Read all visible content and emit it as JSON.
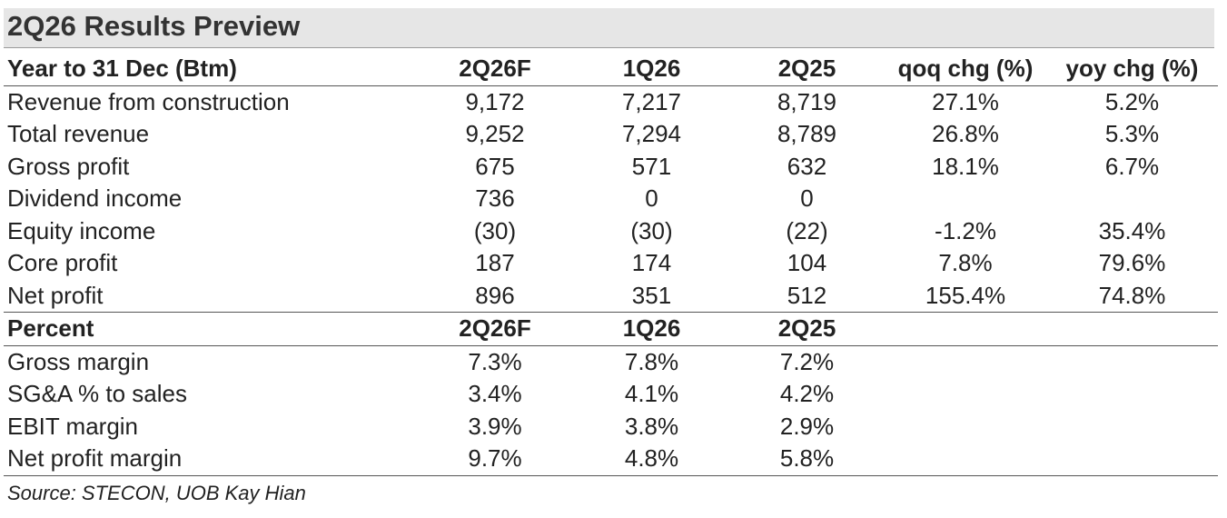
{
  "title": "2Q26 Results Preview",
  "section1": {
    "headers": [
      "Year to 31 Dec (Btm)",
      "2Q26F",
      "1Q26",
      "2Q25",
      "qoq chg (%)",
      "yoy chg (%)"
    ],
    "rows": [
      {
        "label": "Revenue from construction",
        "c1": "9,172",
        "c2": "7,217",
        "c3": "8,719",
        "c4": "27.1%",
        "c5": "5.2%"
      },
      {
        "label": "Total revenue",
        "c1": "9,252",
        "c2": "7,294",
        "c3": "8,789",
        "c4": "26.8%",
        "c5": "5.3%"
      },
      {
        "label": "Gross profit",
        "c1": "675",
        "c2": "571",
        "c3": "632",
        "c4": "18.1%",
        "c5": "6.7%"
      },
      {
        "label": "Dividend income",
        "c1": "736",
        "c2": "0",
        "c3": "0",
        "c4": "",
        "c5": ""
      },
      {
        "label": "Equity income",
        "c1": "(30)",
        "c2": "(30)",
        "c3": "(22)",
        "c4": "-1.2%",
        "c5": "35.4%"
      },
      {
        "label": "Core profit",
        "c1": "187",
        "c2": "174",
        "c3": "104",
        "c4": "7.8%",
        "c5": "79.6%"
      },
      {
        "label": "Net profit",
        "c1": "896",
        "c2": "351",
        "c3": "512",
        "c4": "155.4%",
        "c5": "74.8%"
      }
    ]
  },
  "section2": {
    "headers": [
      "Percent",
      "2Q26F",
      "1Q26",
      "2Q25",
      "",
      ""
    ],
    "rows": [
      {
        "label": "Gross margin",
        "c1": "7.3%",
        "c2": "7.8%",
        "c3": "7.2%"
      },
      {
        "label": "SG&A % to sales",
        "c1": "3.4%",
        "c2": "4.1%",
        "c3": "4.2%"
      },
      {
        "label": "EBIT margin",
        "c1": "3.9%",
        "c2": "3.8%",
        "c3": "2.9%"
      },
      {
        "label": "Net profit margin",
        "c1": "9.7%",
        "c2": "4.8%",
        "c3": "5.8%"
      }
    ]
  },
  "source": "Source: STECON, UOB Kay Hian"
}
